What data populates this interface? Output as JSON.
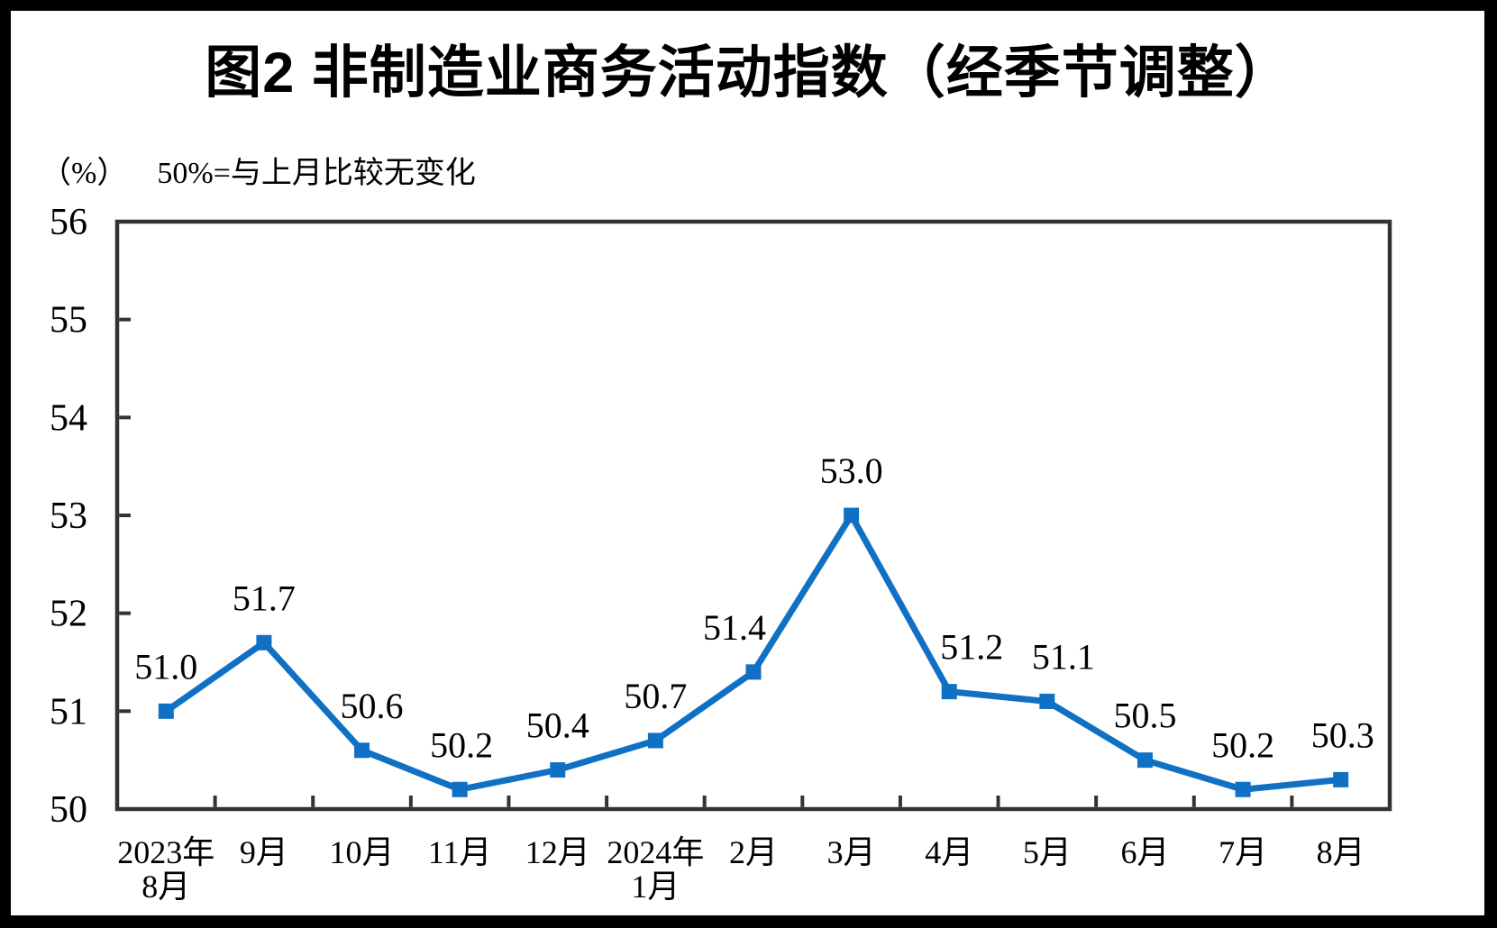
{
  "page": {
    "title": "图2 非制造业商务活动指数（经季节调整）",
    "unit_label": "（%）",
    "note": "50%=与上月比较无变化"
  },
  "chart_data": {
    "type": "line",
    "title": "图2 非制造业商务活动指数（经季节调整）",
    "subtitle": "50%=与上月比较无变化",
    "ylabel": "（%）",
    "xlabel": "",
    "categories": [
      "2023年\n8月",
      "9月",
      "10月",
      "11月",
      "12月",
      "2024年\n1月",
      "2月",
      "3月",
      "4月",
      "5月",
      "6月",
      "7月",
      "8月"
    ],
    "values": [
      51.0,
      51.7,
      50.6,
      50.2,
      50.4,
      50.7,
      51.4,
      53.0,
      51.2,
      51.1,
      50.5,
      50.2,
      50.3
    ],
    "point_labels": [
      "51.0",
      "51.7",
      "50.6",
      "50.2",
      "50.4",
      "50.7",
      "51.4",
      "53.0",
      "51.2",
      "51.1",
      "50.5",
      "50.2",
      "50.3"
    ],
    "label_dx": [
      0,
      0,
      11,
      2,
      0,
      0,
      -21,
      0,
      25,
      18,
      0,
      0,
      2
    ],
    "ylim": [
      50,
      56
    ],
    "yticks": [
      50,
      51,
      52,
      53,
      54,
      55,
      56
    ],
    "grid": false,
    "legend": "none",
    "marker": "square",
    "series_color": "#1070C4",
    "axis_color": "#333333",
    "text_color": "#000000"
  }
}
